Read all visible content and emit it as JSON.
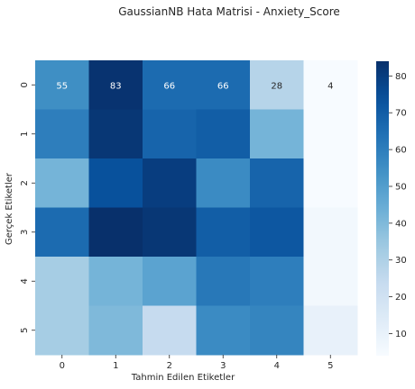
{
  "chart_data": {
    "type": "heatmap",
    "title": "GaussianNB Hata Matrisi - Anxiety_Score",
    "xlabel": "Tahmin Edilen Etiketler",
    "ylabel": "Gerçek Etiketler",
    "x_categories": [
      "0",
      "1",
      "2",
      "3",
      "4",
      "5"
    ],
    "y_categories": [
      "0",
      "1",
      "2",
      "3",
      "4",
      "5"
    ],
    "values": [
      [
        55,
        83,
        66,
        66,
        28,
        4
      ],
      [
        60,
        82,
        68,
        70,
        42,
        4
      ],
      [
        42,
        74,
        80,
        56,
        68,
        4
      ],
      [
        66,
        84,
        82,
        70,
        72,
        6
      ],
      [
        32,
        42,
        48,
        62,
        60,
        6
      ],
      [
        32,
        40,
        24,
        56,
        58,
        10
      ]
    ],
    "annotated_row": 0,
    "colormap": "Blues",
    "vmin": 4,
    "vmax": 84,
    "colorbar_ticks": [
      10,
      20,
      30,
      40,
      50,
      60,
      70,
      80
    ]
  }
}
